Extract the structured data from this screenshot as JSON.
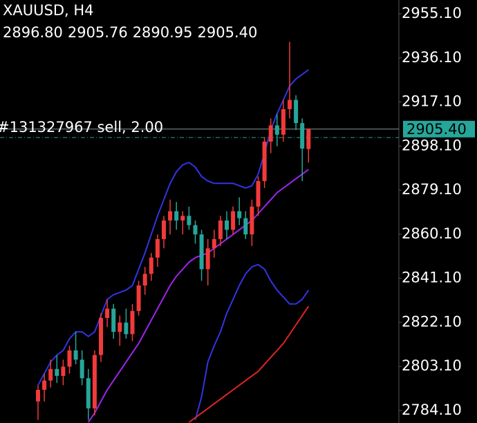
{
  "chart_data": {
    "type": "candlestick",
    "title": "XAUUSD, H4",
    "ohlc_labels": [
      "2896.80",
      "2905.76",
      "2890.95",
      "2905.40"
    ],
    "ylim": [
      2778.7,
      2961.06
    ],
    "yticks": [
      {
        "value": 2955.1,
        "label": "2955.10"
      },
      {
        "value": 2936.1,
        "label": "2936.10"
      },
      {
        "value": 2917.1,
        "label": "2917.10"
      },
      {
        "value": 2898.1,
        "label": "2898.10"
      },
      {
        "value": 2879.1,
        "label": "2879.10"
      },
      {
        "value": 2860.1,
        "label": "2860.10"
      },
      {
        "value": 2841.1,
        "label": "2841.10"
      },
      {
        "value": 2822.1,
        "label": "2822.10"
      },
      {
        "value": 2803.1,
        "label": "2803.10"
      },
      {
        "value": 2784.1,
        "label": "2784.10"
      }
    ],
    "up_color": "#f23a3a",
    "down_color": "#26a69a",
    "open": [
      2788,
      2793,
      2797,
      2802,
      2799,
      2803,
      2810,
      2806,
      2798,
      2785,
      2808,
      2824,
      2828,
      2818,
      2822,
      2817,
      2827,
      2838,
      2843,
      2850,
      2858,
      2866,
      2870,
      2866,
      2868,
      2864,
      2860,
      2845,
      2854,
      2858,
      2866,
      2862,
      2870,
      2867,
      2860,
      2872,
      2883,
      2900,
      2907,
      2903,
      2914,
      2918,
      2908,
      2896.8
    ],
    "high": [
      2795,
      2800,
      2806,
      2808,
      2806,
      2812,
      2818,
      2810,
      2802,
      2810,
      2826,
      2832,
      2830,
      2825,
      2828,
      2830,
      2840,
      2846,
      2852,
      2860,
      2868,
      2875,
      2874,
      2870,
      2872,
      2866,
      2862,
      2858,
      2862,
      2868,
      2870,
      2872,
      2876,
      2870,
      2875,
      2885,
      2902,
      2910,
      2912,
      2918,
      2943,
      2920,
      2910,
      2905.76
    ],
    "low": [
      2780,
      2788,
      2794,
      2796,
      2795,
      2800,
      2804,
      2795,
      2780,
      2782,
      2805,
      2820,
      2815,
      2812,
      2815,
      2814,
      2825,
      2834,
      2840,
      2846,
      2854,
      2860,
      2862,
      2860,
      2862,
      2856,
      2840,
      2838,
      2850,
      2855,
      2858,
      2860,
      2864,
      2858,
      2855,
      2868,
      2880,
      2895,
      2898,
      2900,
      2910,
      2905,
      2883,
      2890.95
    ],
    "close": [
      2793,
      2797,
      2802,
      2799,
      2803,
      2810,
      2806,
      2798,
      2785,
      2808,
      2824,
      2828,
      2818,
      2822,
      2817,
      2827,
      2838,
      2843,
      2850,
      2858,
      2866,
      2870,
      2866,
      2868,
      2864,
      2860,
      2845,
      2854,
      2858,
      2866,
      2862,
      2870,
      2867,
      2860,
      2872,
      2883,
      2900,
      2907,
      2903,
      2914,
      2918,
      2908,
      2897,
      2905.4
    ],
    "lines": [
      {
        "color": "#3333e6",
        "values": [
          2795,
          2800,
          2805,
          2808,
          2810,
          2815,
          2818,
          2818,
          2816,
          2818,
          2825,
          2832,
          2834,
          2835,
          2836,
          2838,
          2845,
          2852,
          2860,
          2868,
          2875,
          2882,
          2887,
          2890,
          2891,
          2889,
          2885,
          2883,
          2882,
          2882,
          2882,
          2882,
          2881,
          2880,
          2881,
          2886,
          2895,
          2905,
          2912,
          2918,
          2924,
          2927,
          2929,
          2931
        ]
      },
      {
        "color": "#3333e6",
        "values": [
          null,
          null,
          null,
          null,
          null,
          null,
          null,
          null,
          null,
          null,
          null,
          null,
          null,
          null,
          null,
          null,
          null,
          null,
          null,
          null,
          null,
          null,
          null,
          null,
          null,
          2780,
          2790,
          2805,
          2812,
          2818,
          2826,
          2832,
          2838,
          2843,
          2846,
          2847,
          2845,
          2840,
          2836,
          2833,
          2830,
          2830,
          2832,
          2836
        ]
      },
      {
        "color": "#a024f0",
        "values": [
          null,
          null,
          null,
          null,
          null,
          null,
          null,
          null,
          2779,
          2783,
          2788,
          2793,
          2797,
          2801,
          2805,
          2809,
          2813,
          2818,
          2823,
          2828,
          2833,
          2838,
          2842,
          2845,
          2848,
          2850,
          2851,
          2852,
          2854,
          2856,
          2858,
          2860,
          2862,
          2864,
          2866,
          2869,
          2872,
          2875,
          2878,
          2880,
          2882,
          2884,
          2886,
          2888
        ]
      },
      {
        "color": "#e02424",
        "values": [
          null,
          null,
          null,
          null,
          null,
          null,
          null,
          null,
          null,
          null,
          null,
          null,
          null,
          null,
          null,
          null,
          null,
          null,
          null,
          null,
          null,
          null,
          null,
          null,
          2779,
          2781,
          2783,
          2785,
          2787,
          2789,
          2791,
          2793,
          2795,
          2797,
          2799,
          2801,
          2804,
          2807,
          2810,
          2813,
          2817,
          2821,
          2825,
          2829
        ]
      }
    ],
    "price_line": {
      "value": 2905.4,
      "label": "2905.40",
      "color": "#26a69a"
    },
    "order_line": {
      "value": 2901.75,
      "label": "#131327967 sell, 2.00",
      "color": "#26a69a"
    }
  }
}
